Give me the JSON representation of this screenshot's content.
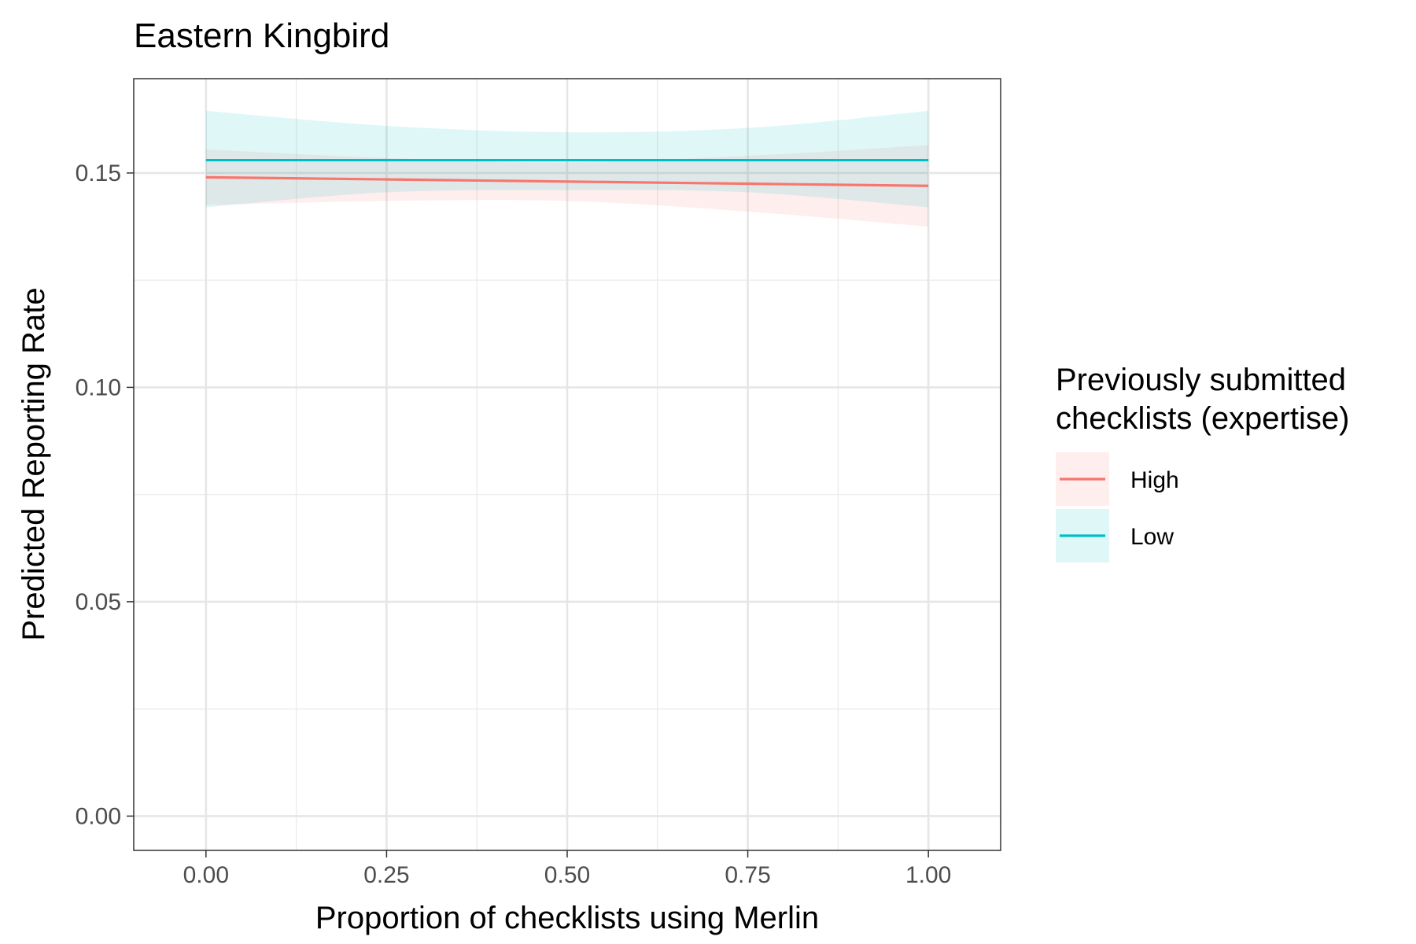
{
  "chart_data": {
    "type": "line",
    "title": "Eastern Kingbird",
    "xlabel": "Proportion of checklists using Merlin",
    "ylabel": "Predicted Reporting Rate",
    "xlim": [
      -0.1,
      1.1
    ],
    "ylim": [
      -0.008,
      0.172
    ],
    "x_ticks": [
      0.0,
      0.25,
      0.5,
      0.75,
      1.0
    ],
    "x_tick_labels": [
      "0.00",
      "0.25",
      "0.50",
      "0.75",
      "1.00"
    ],
    "y_ticks": [
      0.0,
      0.05,
      0.1,
      0.15
    ],
    "y_tick_labels": [
      "0.00",
      "0.05",
      "0.10",
      "0.15"
    ],
    "grid": true,
    "legend": {
      "title_lines": [
        "Previously submitted",
        "checklists (expertise)"
      ],
      "placement": "right"
    },
    "series": [
      {
        "name": "High",
        "color": "#F8766D",
        "x": [
          0.0,
          0.25,
          0.5,
          0.75,
          1.0
        ],
        "y": [
          0.149,
          0.1485,
          0.148,
          0.1475,
          0.147
        ],
        "lower": [
          0.1425,
          0.1435,
          0.1435,
          0.141,
          0.1375
        ],
        "upper": [
          0.1555,
          0.1535,
          0.1525,
          0.154,
          0.1565
        ]
      },
      {
        "name": "Low",
        "color": "#00BFC4",
        "x": [
          0.0,
          0.25,
          0.5,
          0.75,
          1.0
        ],
        "y": [
          0.153,
          0.153,
          0.153,
          0.153,
          0.153
        ],
        "lower": [
          0.142,
          0.1455,
          0.146,
          0.1455,
          0.142
        ],
        "upper": [
          0.1645,
          0.161,
          0.1595,
          0.1605,
          0.1645
        ]
      }
    ]
  }
}
